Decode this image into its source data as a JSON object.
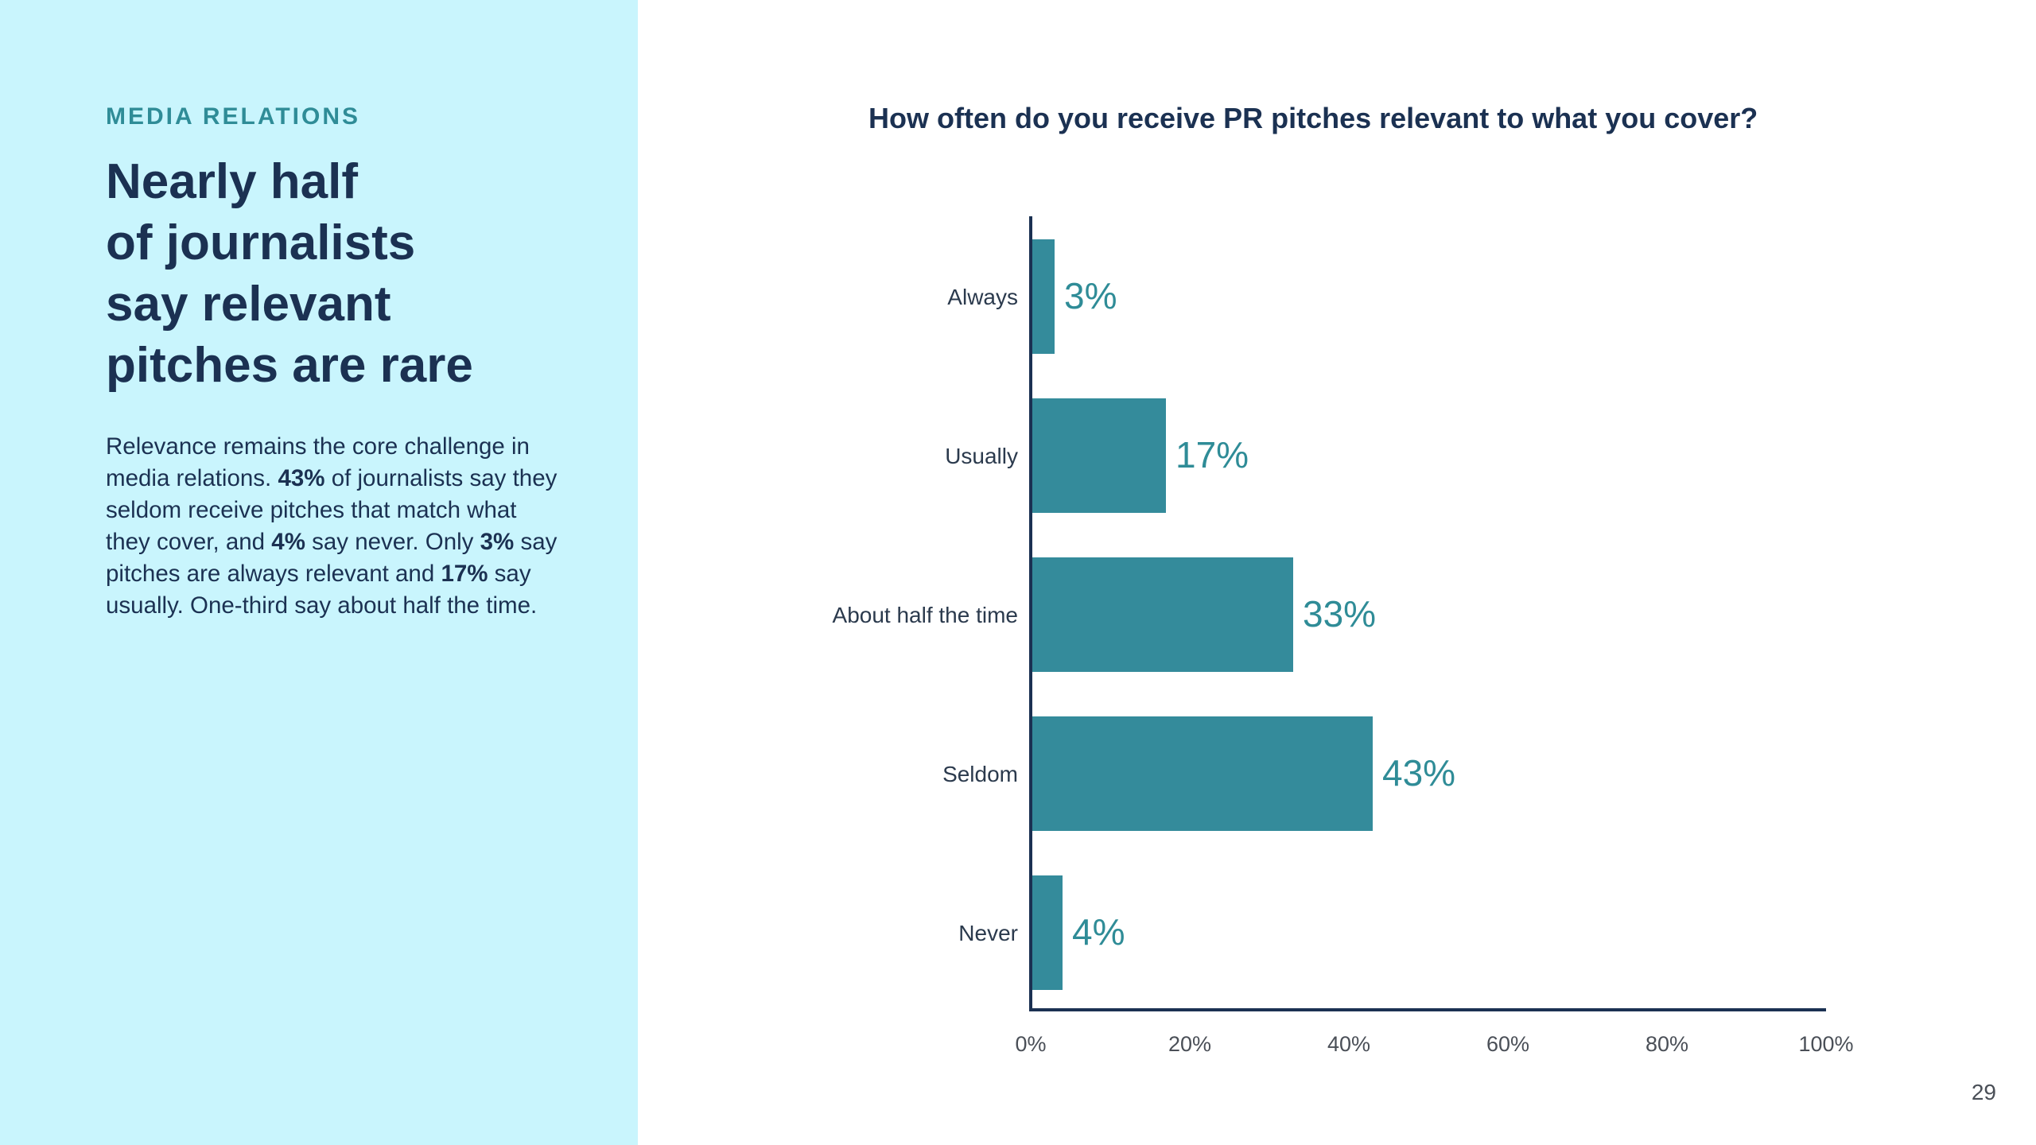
{
  "section_label": "MEDIA RELATIONS",
  "headline_lines": [
    "Nearly half",
    "of journalists",
    "say relevant",
    "pitches are rare"
  ],
  "body": {
    "p1": "Relevance remains the core challenge in media relations. ",
    "b1": "43%",
    "p2": " of journalists say they seldom receive pitches that match what they cover, and ",
    "b2": "4%",
    "p3": " say never. Only ",
    "b3": "3%",
    "p4": " say pitches are always relevant and ",
    "b4": "17%",
    "p5": " say usually. One-third say about half the time."
  },
  "page_number": "29",
  "colors": {
    "panel": "#c9f5fd",
    "bar": "#348b9b",
    "navy": "#1b3152",
    "accent": "#2f8c97"
  },
  "chart_data": {
    "type": "bar",
    "orientation": "horizontal",
    "title": "How often do you receive PR pitches relevant to what you cover?",
    "categories": [
      "Always",
      "Usually",
      "About half the time",
      "Seldom",
      "Never"
    ],
    "values": [
      3,
      17,
      33,
      43,
      4
    ],
    "value_labels": [
      "3%",
      "17%",
      "33%",
      "43%",
      "4%"
    ],
    "xlim": [
      0,
      100
    ],
    "xticks": [
      0,
      20,
      40,
      60,
      80,
      100
    ],
    "xtick_labels": [
      "0%",
      "20%",
      "40%",
      "60%",
      "80%",
      "100%"
    ],
    "grid": false,
    "legend": "none"
  }
}
